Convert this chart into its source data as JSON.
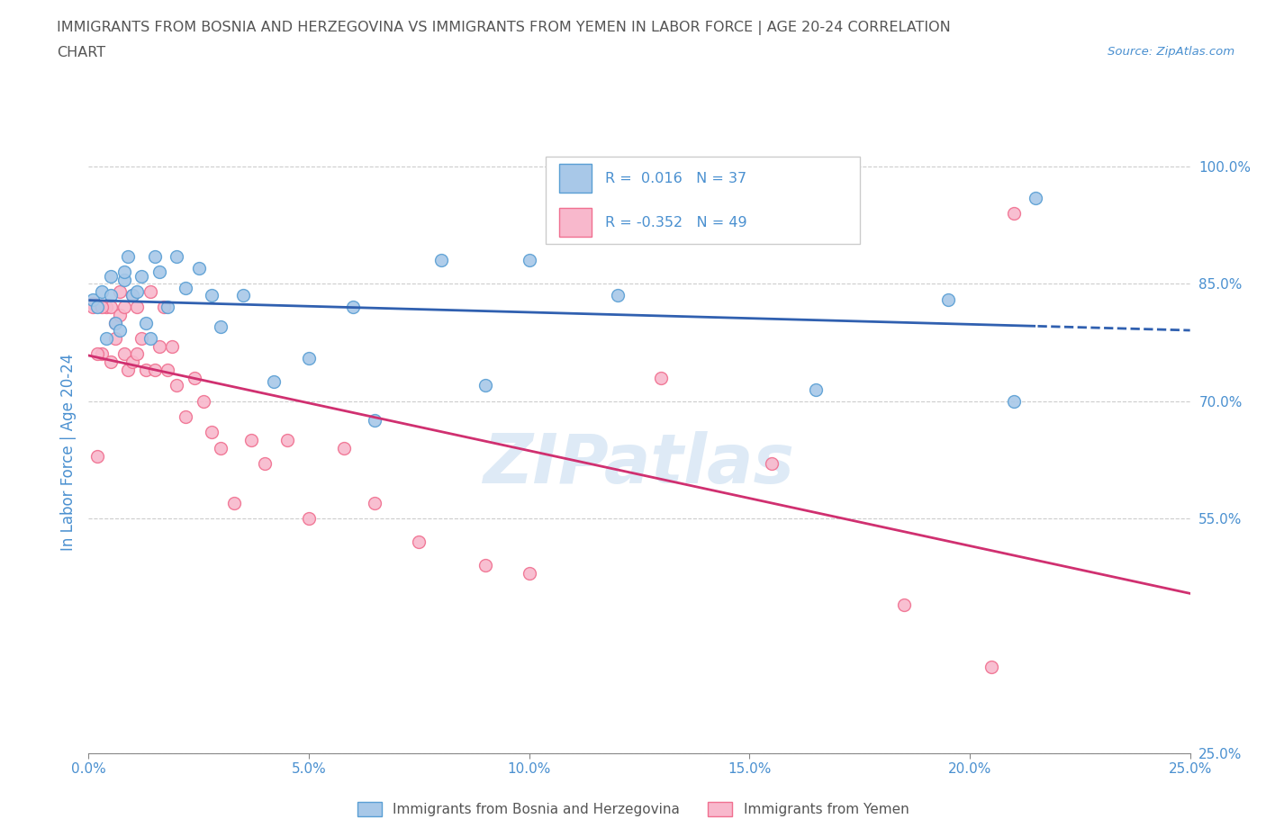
{
  "title_line1": "IMMIGRANTS FROM BOSNIA AND HERZEGOVINA VS IMMIGRANTS FROM YEMEN IN LABOR FORCE | AGE 20-24 CORRELATION",
  "title_line2": "CHART",
  "source": "Source: ZipAtlas.com",
  "ylabel": "In Labor Force | Age 20-24",
  "watermark": "ZIPatlas",
  "r_bosnia": 0.016,
  "n_bosnia": 37,
  "r_yemen": -0.352,
  "n_yemen": 49,
  "bosnia_color": "#a8c8e8",
  "bosnia_edge": "#5a9fd4",
  "yemen_color": "#f8b8cc",
  "yemen_edge": "#f07090",
  "trendline_bosnia_color": "#3060b0",
  "trendline_yemen_color": "#d03070",
  "xlim": [
    0.0,
    0.25
  ],
  "ylim": [
    0.25,
    1.02
  ],
  "xticks": [
    0.0,
    0.05,
    0.1,
    0.15,
    0.2,
    0.25
  ],
  "yticks": [
    0.25,
    0.55,
    0.7,
    0.85,
    1.0
  ],
  "ytick_labels": [
    "25.0%",
    "55.0%",
    "70.0%",
    "85.0%",
    "100.0%"
  ],
  "xtick_labels": [
    "0.0%",
    "",
    "5.0%",
    "",
    "10.0%",
    "",
    "15.0%",
    "",
    "20.0%",
    "",
    "25.0%"
  ],
  "background_color": "#ffffff",
  "grid_color": "#cccccc",
  "axis_color": "#4a90d0",
  "title_color": "#555555",
  "bosnia_x": [
    0.001,
    0.002,
    0.003,
    0.004,
    0.005,
    0.005,
    0.006,
    0.007,
    0.008,
    0.008,
    0.009,
    0.01,
    0.011,
    0.012,
    0.013,
    0.014,
    0.015,
    0.016,
    0.018,
    0.02,
    0.022,
    0.025,
    0.028,
    0.03,
    0.035,
    0.042,
    0.05,
    0.06,
    0.065,
    0.08,
    0.09,
    0.1,
    0.12,
    0.165,
    0.195,
    0.21,
    0.215
  ],
  "bosnia_y": [
    0.83,
    0.82,
    0.84,
    0.78,
    0.835,
    0.86,
    0.8,
    0.79,
    0.855,
    0.865,
    0.885,
    0.835,
    0.84,
    0.86,
    0.8,
    0.78,
    0.885,
    0.865,
    0.82,
    0.885,
    0.845,
    0.87,
    0.835,
    0.795,
    0.835,
    0.725,
    0.755,
    0.82,
    0.675,
    0.88,
    0.72,
    0.88,
    0.835,
    0.715,
    0.83,
    0.7,
    0.96
  ],
  "yemen_x": [
    0.001,
    0.002,
    0.003,
    0.004,
    0.005,
    0.005,
    0.006,
    0.006,
    0.007,
    0.007,
    0.008,
    0.009,
    0.01,
    0.01,
    0.011,
    0.011,
    0.012,
    0.013,
    0.014,
    0.015,
    0.016,
    0.017,
    0.018,
    0.019,
    0.02,
    0.022,
    0.024,
    0.026,
    0.028,
    0.03,
    0.033,
    0.037,
    0.04,
    0.045,
    0.05,
    0.058,
    0.065,
    0.075,
    0.09,
    0.1,
    0.13,
    0.155,
    0.185,
    0.205,
    0.21,
    0.001,
    0.002,
    0.003,
    0.008
  ],
  "yemen_y": [
    0.825,
    0.63,
    0.76,
    0.82,
    0.75,
    0.82,
    0.78,
    0.8,
    0.81,
    0.84,
    0.76,
    0.74,
    0.75,
    0.835,
    0.76,
    0.82,
    0.78,
    0.74,
    0.84,
    0.74,
    0.77,
    0.82,
    0.74,
    0.77,
    0.72,
    0.68,
    0.73,
    0.7,
    0.66,
    0.64,
    0.57,
    0.65,
    0.62,
    0.65,
    0.55,
    0.64,
    0.57,
    0.52,
    0.49,
    0.48,
    0.73,
    0.62,
    0.44,
    0.36,
    0.94,
    0.82,
    0.76,
    0.82,
    0.82
  ]
}
